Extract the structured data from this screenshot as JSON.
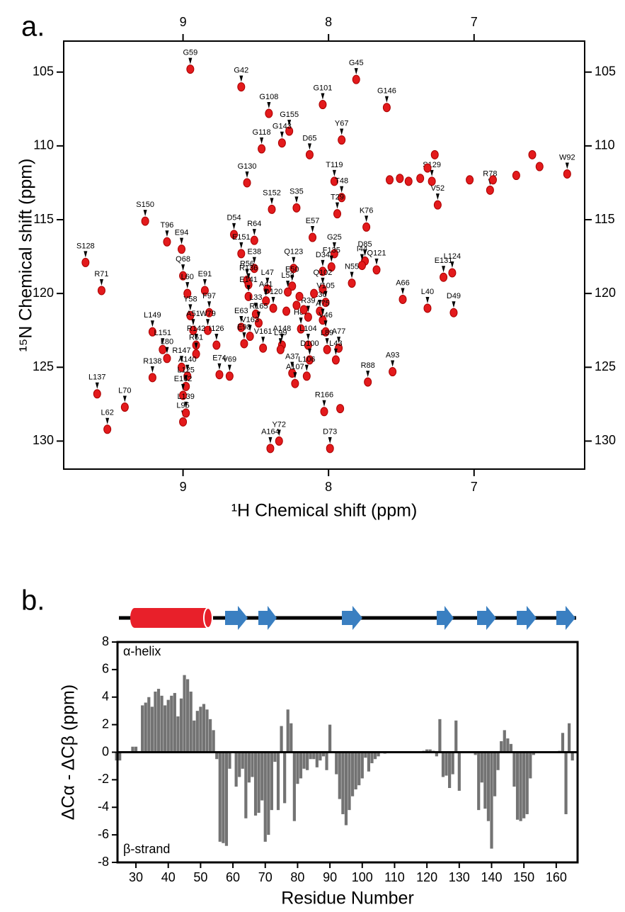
{
  "chart_data": [
    {
      "type": "scatter",
      "panel_label": "a.",
      "xlabel": "¹H Chemical shift (ppm)",
      "ylabel": "¹⁵N Chemical shift (ppm)",
      "xlim": [
        9.82,
        6.24
      ],
      "ylim": [
        102.9,
        131.9
      ],
      "xticks": [
        9,
        8,
        7
      ],
      "yticks": [
        105,
        110,
        115,
        120,
        125,
        130
      ],
      "color": "#e31a1c",
      "labels": [
        "G59",
        "G42",
        "G45",
        "G101",
        "G146",
        "G108",
        "G155",
        "G118",
        "G143",
        "D65",
        "Y67",
        "G130",
        "T119",
        "S129",
        "W92",
        "V52",
        "R78",
        "T48",
        "S152",
        "S35",
        "T29",
        "S150",
        "K76",
        "D54",
        "R64",
        "E57",
        "T96",
        "E94",
        "G25",
        "S128",
        "D85",
        "I44",
        "E151",
        "E38",
        "Q123",
        "D34",
        "F135",
        "Q121",
        "E131",
        "L124",
        "R71",
        "R56",
        "Q68",
        "R136",
        "L47",
        "E91",
        "L60",
        "N55",
        "E50",
        "L53",
        "Q102",
        "A41",
        "V105",
        "A66",
        "L40",
        "D49",
        "E141",
        "D120",
        "F97",
        "E36",
        "Y58",
        "L33",
        "A75",
        "R39",
        "W79",
        "L149",
        "R165",
        "A51",
        "E63",
        "H87",
        "R142",
        "I126",
        "V163",
        "V46",
        "A148",
        "A77",
        "L151",
        "E98",
        "V161",
        "L104",
        "L89",
        "L43",
        "L80",
        "L99",
        "R61",
        "R138",
        "R147",
        "E74",
        "D100",
        "A37",
        "R88",
        "A93",
        "V69",
        "L106",
        "A140",
        "A107",
        "L137",
        "L125",
        "R166",
        "L70",
        "E162",
        "L95",
        "L139",
        "L62",
        "Y72",
        "A164",
        "D73",
        null,
        null,
        null,
        null,
        null,
        null,
        null,
        null,
        null,
        null,
        null,
        null,
        null,
        null,
        null,
        null,
        null
      ],
      "x": [
        8.95,
        8.6,
        7.81,
        8.04,
        7.6,
        8.41,
        8.27,
        8.46,
        8.32,
        8.13,
        7.91,
        8.56,
        7.96,
        7.29,
        6.36,
        7.25,
        6.89,
        7.91,
        8.39,
        8.22,
        7.94,
        9.26,
        7.74,
        8.65,
        8.51,
        8.11,
        9.11,
        9.01,
        7.96,
        9.67,
        7.75,
        7.77,
        8.6,
        8.51,
        8.24,
        8.04,
        7.98,
        7.67,
        7.21,
        7.15,
        9.56,
        8.56,
        9.0,
        8.55,
        8.42,
        8.85,
        8.97,
        7.84,
        8.25,
        8.28,
        8.04,
        8.43,
        8.02,
        7.49,
        7.32,
        7.14,
        8.55,
        8.38,
        8.82,
        8.06,
        8.95,
        8.5,
        8.04,
        8.14,
        8.83,
        9.21,
        8.48,
        8.93,
        8.6,
        8.19,
        8.91,
        8.77,
        8.54,
        8.02,
        8.32,
        7.93,
        9.14,
        8.58,
        8.45,
        8.14,
        8.01,
        7.95,
        9.11,
        8.33,
        8.91,
        9.21,
        9.01,
        8.75,
        8.13,
        8.25,
        7.73,
        7.56,
        8.68,
        8.15,
        8.97,
        8.23,
        9.59,
        8.98,
        8.03,
        9.4,
        9.0,
        9.0,
        8.98,
        9.52,
        8.34,
        8.4,
        7.99,
        7.51,
        7.37,
        7.32,
        7.27,
        7.03,
        6.87,
        6.71,
        6.55,
        6.6,
        7.58,
        7.45,
        8.22,
        8.17,
        8.29,
        8.2,
        8.1,
        7.92
      ],
      "values": [
        104.8,
        106.0,
        105.5,
        107.2,
        107.4,
        107.8,
        109.0,
        110.2,
        109.8,
        110.6,
        109.6,
        112.5,
        112.4,
        112.4,
        111.9,
        114.0,
        113.0,
        113.5,
        114.3,
        114.2,
        114.6,
        115.1,
        115.5,
        116.0,
        116.4,
        116.2,
        116.5,
        117.0,
        117.3,
        117.9,
        117.8,
        118.1,
        117.3,
        118.3,
        118.3,
        118.5,
        118.2,
        118.4,
        118.9,
        118.6,
        119.8,
        119.1,
        118.8,
        119.4,
        119.7,
        119.8,
        120.0,
        119.3,
        119.5,
        119.9,
        119.7,
        120.5,
        120.6,
        120.4,
        121.0,
        121.3,
        120.2,
        121.0,
        121.3,
        121.2,
        121.5,
        121.4,
        121.8,
        121.6,
        122.5,
        122.6,
        122.0,
        122.5,
        122.3,
        122.4,
        123.5,
        123.5,
        122.9,
        122.6,
        123.5,
        123.7,
        123.8,
        123.4,
        123.7,
        123.5,
        123.8,
        124.5,
        124.4,
        123.8,
        124.1,
        125.7,
        125.0,
        125.5,
        124.5,
        125.4,
        126.0,
        125.3,
        125.6,
        125.6,
        125.6,
        126.1,
        126.8,
        126.3,
        128.0,
        127.7,
        126.9,
        128.7,
        128.1,
        129.2,
        130.0,
        130.5,
        130.5,
        112.2,
        112.2,
        111.5,
        110.6,
        112.3,
        112.3,
        112.0,
        111.4,
        110.6,
        112.3,
        112.4,
        120.8,
        121.1,
        121.2,
        120.2,
        120.0,
        127.8
      ]
    },
    {
      "type": "bar",
      "panel_label": "b.",
      "xlabel": "Residue Number",
      "ylabel": "ΔCα - ΔCβ (ppm)",
      "annotations": [
        "α-helix",
        "β-strand"
      ],
      "xlim": [
        24.3,
        166.6
      ],
      "ylim": [
        -8,
        8
      ],
      "xticks": [
        30,
        40,
        50,
        60,
        70,
        80,
        90,
        100,
        110,
        120,
        130,
        140,
        150,
        160
      ],
      "yticks": [
        -8,
        -6,
        -4,
        -2,
        0,
        2,
        4,
        6,
        8
      ],
      "color": "#737373",
      "x": [
        24,
        25,
        26,
        27,
        28,
        29,
        30,
        31,
        32,
        33,
        34,
        35,
        36,
        37,
        38,
        39,
        40,
        41,
        42,
        43,
        44,
        45,
        46,
        47,
        48,
        49,
        50,
        51,
        52,
        53,
        54,
        55,
        56,
        57,
        58,
        59,
        60,
        61,
        62,
        63,
        64,
        65,
        66,
        67,
        68,
        69,
        70,
        71,
        72,
        73,
        74,
        75,
        76,
        77,
        78,
        79,
        80,
        81,
        82,
        83,
        84,
        85,
        86,
        87,
        88,
        89,
        90,
        91,
        92,
        93,
        94,
        95,
        96,
        97,
        98,
        99,
        100,
        101,
        102,
        103,
        104,
        105,
        106,
        107,
        108,
        109,
        110,
        111,
        112,
        113,
        114,
        115,
        116,
        117,
        118,
        119,
        120,
        121,
        122,
        123,
        124,
        125,
        126,
        127,
        128,
        129,
        130,
        131,
        132,
        133,
        134,
        135,
        136,
        137,
        138,
        139,
        140,
        141,
        142,
        143,
        144,
        145,
        146,
        147,
        148,
        149,
        150,
        151,
        152,
        153,
        154,
        155,
        156,
        157,
        158,
        159,
        160,
        161,
        162,
        163,
        164,
        165
      ],
      "values": [
        -0.6,
        -0.6,
        0,
        0,
        0,
        0.4,
        0.4,
        0,
        3.4,
        3.6,
        4.0,
        3.3,
        4.4,
        4.6,
        4.1,
        3.4,
        3.8,
        4.1,
        4.3,
        2.6,
        3.9,
        5.6,
        5.3,
        4.4,
        2.3,
        3.0,
        3.3,
        3.5,
        3.1,
        2.4,
        1.6,
        -0.5,
        -6.5,
        -6.6,
        -6.8,
        -1.2,
        0,
        -2.5,
        -1.8,
        -1.2,
        -4.8,
        -2.2,
        -1.8,
        -4.6,
        -4.4,
        -3.5,
        -6.5,
        -6.0,
        -4.2,
        -0.7,
        -4.2,
        1.9,
        -3.7,
        3.1,
        2.1,
        -5.0,
        -2.3,
        -1.9,
        -1.2,
        -1.3,
        -0.5,
        -0.5,
        -1.1,
        -0.6,
        -0.3,
        -1.3,
        2.0,
        0,
        -1.6,
        -3.4,
        -4.5,
        -5.3,
        -4.2,
        -3.2,
        -2.7,
        -2.4,
        -1.9,
        -0.4,
        -1.4,
        -0.8,
        -0.5,
        -0.3,
        0,
        -0.1,
        0,
        0,
        0,
        0,
        0,
        0,
        0,
        0,
        0,
        0,
        0,
        0.1,
        0.2,
        0.2,
        0.1,
        -0.3,
        2.4,
        -1.8,
        -1.7,
        -2.6,
        -1.6,
        2.3,
        -2.8,
        0,
        0,
        0,
        0,
        -0.2,
        -4.2,
        -2.2,
        -4.1,
        -5.0,
        -7.0,
        -3.2,
        -1.3,
        0.8,
        1.6,
        1.0,
        0.6,
        -2.5,
        -4.9,
        -5.0,
        -4.8,
        -4.5,
        -1.9,
        -0.2,
        0,
        0,
        0,
        0,
        0,
        0,
        0,
        0.1,
        1.4,
        -4.5,
        2.1,
        -0.6
      ]
    }
  ]
}
